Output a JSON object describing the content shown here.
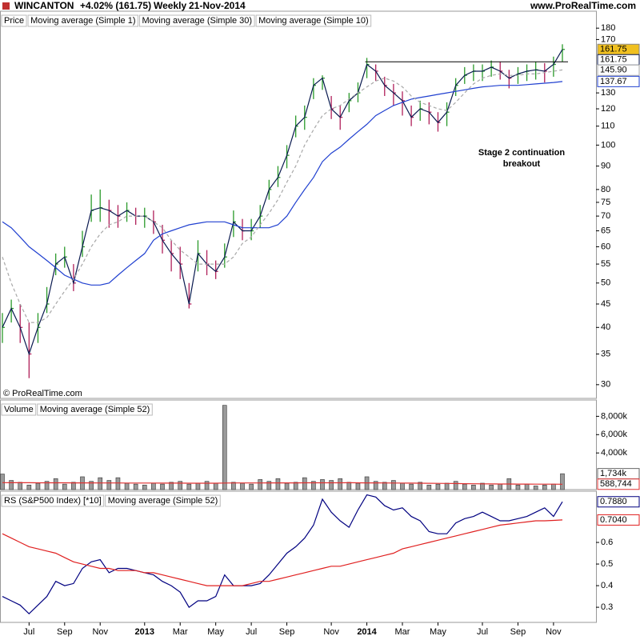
{
  "header": {
    "symbol": "WINCANTON",
    "change": "+4.02% (161.75)",
    "period": "Weekly",
    "date": "21-Nov-2014",
    "site": "www.ProRealTime.com"
  },
  "chart_data": [
    {
      "type": "ohlc",
      "credit": "© ProRealTime.com",
      "log": true,
      "ylim": [
        28,
        196
      ],
      "yticks": [
        30,
        35,
        40,
        45,
        50,
        55,
        60,
        65,
        70,
        75,
        80,
        90,
        100,
        110,
        120,
        130,
        170,
        180
      ],
      "hline": 152,
      "annotations": [
        {
          "text": [
            "Stage 2 continuation",
            "breakout"
          ]
        }
      ],
      "up_color": "#2a9a2a",
      "down_color": "#b0205a",
      "series": [
        {
          "name": "Price",
          "color": "#000000",
          "label_fill": "#f0c020",
          "values": [
            40,
            44,
            40,
            35,
            40,
            45,
            55,
            57,
            50,
            60,
            72,
            73,
            72,
            70,
            72,
            70,
            70,
            68,
            62,
            58,
            55,
            45,
            58,
            55,
            53,
            57,
            68,
            65,
            65,
            70,
            80,
            85,
            95,
            110,
            115,
            135,
            140,
            120,
            115,
            125,
            130,
            150,
            145,
            135,
            130,
            125,
            115,
            120,
            118,
            112,
            118,
            135,
            142,
            145,
            145,
            148,
            145,
            140,
            143,
            145,
            146,
            145,
            150,
            161.75
          ],
          "high": [
            43,
            46,
            45,
            41,
            43,
            49,
            58,
            60,
            55,
            65,
            78,
            80,
            76,
            74,
            75,
            73,
            73,
            72,
            67,
            62,
            60,
            50,
            62,
            59,
            56,
            61,
            72,
            69,
            69,
            74,
            84,
            90,
            100,
            116,
            122,
            140,
            142,
            128,
            122,
            130,
            137,
            155,
            150,
            141,
            136,
            131,
            122,
            125,
            124,
            118,
            124,
            140,
            148,
            150,
            150,
            153,
            152,
            146,
            148,
            150,
            152,
            151,
            156,
            166
          ],
          "low": [
            37,
            41,
            37,
            31,
            37,
            43,
            52,
            54,
            48,
            57,
            68,
            68,
            66,
            66,
            68,
            67,
            66,
            64,
            58,
            53,
            51,
            44,
            53,
            52,
            51,
            54,
            63,
            62,
            62,
            66,
            76,
            81,
            89,
            104,
            108,
            126,
            132,
            114,
            108,
            118,
            124,
            140,
            138,
            128,
            122,
            116,
            110,
            113,
            111,
            107,
            110,
            128,
            136,
            138,
            138,
            141,
            139,
            133,
            136,
            138,
            139,
            137,
            141,
            152
          ]
        },
        {
          "name": "Moving average (Simple 1)",
          "color": "#0a1a50",
          "values": [
            40,
            44,
            40,
            35,
            40,
            45,
            55,
            57,
            50,
            60,
            72,
            73,
            72,
            70,
            72,
            70,
            70,
            68,
            62,
            58,
            55,
            45,
            58,
            55,
            53,
            57,
            68,
            65,
            65,
            70,
            80,
            85,
            95,
            110,
            115,
            135,
            140,
            120,
            115,
            125,
            130,
            150,
            145,
            135,
            130,
            125,
            115,
            120,
            118,
            112,
            118,
            135,
            142,
            145,
            145,
            148,
            145,
            140,
            143,
            145,
            146,
            145,
            150,
            161.75
          ]
        },
        {
          "name": "Moving average (Simple 30)",
          "color": "#2040d0",
          "values": [
            68,
            66,
            63,
            60,
            58,
            56,
            54,
            52,
            51,
            50,
            49.5,
            49.5,
            50,
            52,
            54,
            56,
            58,
            62,
            64,
            65,
            66,
            67,
            67.5,
            68,
            68,
            68,
            67,
            66,
            66,
            66,
            66,
            67,
            70,
            75,
            80,
            85,
            92,
            96,
            99,
            103,
            107,
            111,
            116,
            119,
            122,
            124,
            126,
            127,
            128,
            129,
            130,
            131,
            132,
            133,
            134,
            134.5,
            135,
            135,
            135,
            135.5,
            136,
            136.5,
            137,
            137.67
          ]
        },
        {
          "name": "Moving average (Simple 10)",
          "color": "#a8a8a8",
          "dashed": true,
          "values": [
            57,
            50,
            45,
            41,
            41,
            42,
            45,
            48,
            51,
            55,
            60,
            64,
            67,
            68,
            70,
            70,
            70,
            68,
            66,
            62,
            59,
            57,
            55,
            55,
            55,
            55,
            57,
            61,
            63,
            67,
            71,
            76,
            83,
            90,
            100,
            108,
            116,
            120,
            122,
            126,
            130,
            134,
            138,
            140,
            138,
            134,
            128,
            124,
            122,
            120,
            119,
            124,
            130,
            136,
            140,
            142,
            143,
            142,
            142,
            143,
            143,
            144,
            145,
            145.9
          ],
          "value_labels": {
            "63": "145.90"
          }
        }
      ]
    },
    {
      "type": "bar",
      "ylim": [
        0,
        9780
      ],
      "yticks": [
        {
          "value": 4000,
          "label": "4,000k"
        },
        {
          "value": 6000,
          "label": "6,000k"
        },
        {
          "value": 8000,
          "label": "8,000k"
        }
      ],
      "series": [
        {
          "name": "Volume",
          "color": "#9a9a9a",
          "values": [
            1700,
            1000,
            800,
            500,
            700,
            900,
            1200,
            600,
            800,
            1400,
            900,
            1300,
            1000,
            1300,
            700,
            600,
            500,
            700,
            600,
            800,
            900,
            600,
            700,
            900,
            700,
            9200,
            800,
            700,
            600,
            1100,
            900,
            1200,
            700,
            800,
            1300,
            900,
            1100,
            1000,
            1200,
            800,
            700,
            1400,
            900,
            800,
            1000,
            700,
            600,
            800,
            500,
            600,
            700,
            900,
            600,
            500,
            700,
            500,
            600,
            1200,
            500,
            600,
            400,
            500,
            600,
            1734
          ],
          "value_labels": {
            "63": "1,734k"
          }
        },
        {
          "name": "Moving average (Simple 52)",
          "color": "#e03030",
          "values": [
            760,
            755,
            750,
            748,
            745,
            742,
            740,
            738,
            735,
            732,
            730,
            728,
            725,
            722,
            720,
            718,
            715,
            712,
            710,
            708,
            705,
            700,
            698,
            700,
            702,
            720,
            722,
            724,
            726,
            728,
            730,
            732,
            734,
            736,
            738,
            740,
            742,
            744,
            746,
            748,
            740,
            735,
            730,
            725,
            720,
            715,
            710,
            700,
            690,
            680,
            670,
            660,
            650,
            640,
            630,
            620,
            615,
            610,
            605,
            600,
            595,
            592,
            590,
            588.744
          ],
          "value_labels": {
            "63": "588,744"
          }
        }
      ]
    },
    {
      "type": "line",
      "ylim": [
        0.23,
        0.837
      ],
      "yticks": [
        0.3,
        0.4,
        0.5,
        0.6
      ],
      "categories": [
        null,
        null,
        null,
        "Jul",
        null,
        null,
        null,
        "Sep",
        null,
        null,
        null,
        "Nov",
        null,
        null,
        null,
        null,
        "2013",
        null,
        null,
        null,
        "Mar",
        null,
        null,
        null,
        "May",
        null,
        null,
        null,
        "Jul",
        null,
        null,
        null,
        "Sep",
        null,
        null,
        null,
        null,
        "Nov",
        null,
        null,
        null,
        "2014",
        null,
        null,
        null,
        "Mar",
        null,
        null,
        null,
        "May",
        null,
        null,
        null,
        null,
        "Jul",
        null,
        null,
        null,
        "Sep",
        null,
        null,
        null,
        "Nov",
        null
      ],
      "series": [
        {
          "name": "RS (S&P500 Index) [*10]",
          "color": "#000080",
          "values": [
            0.35,
            0.33,
            0.31,
            0.27,
            0.31,
            0.35,
            0.42,
            0.4,
            0.41,
            0.48,
            0.51,
            0.52,
            0.46,
            0.48,
            0.48,
            0.47,
            0.46,
            0.45,
            0.42,
            0.4,
            0.37,
            0.3,
            0.33,
            0.33,
            0.35,
            0.45,
            0.4,
            0.4,
            0.4,
            0.41,
            0.45,
            0.5,
            0.55,
            0.58,
            0.62,
            0.68,
            0.8,
            0.74,
            0.7,
            0.67,
            0.75,
            0.82,
            0.81,
            0.77,
            0.75,
            0.76,
            0.72,
            0.7,
            0.65,
            0.64,
            0.64,
            0.69,
            0.71,
            0.72,
            0.74,
            0.72,
            0.7,
            0.7,
            0.71,
            0.72,
            0.74,
            0.76,
            0.72,
            0.788
          ],
          "value_labels": {
            "63": "0.7880"
          }
        },
        {
          "name": "Moving average (Simple 52)",
          "color": "#e02020",
          "values": [
            0.64,
            0.62,
            0.6,
            0.58,
            0.57,
            0.56,
            0.55,
            0.53,
            0.51,
            0.5,
            0.49,
            0.48,
            0.48,
            0.47,
            0.47,
            0.47,
            0.46,
            0.46,
            0.45,
            0.44,
            0.43,
            0.42,
            0.41,
            0.4,
            0.4,
            0.4,
            0.4,
            0.4,
            0.41,
            0.42,
            0.42,
            0.43,
            0.44,
            0.45,
            0.46,
            0.47,
            0.48,
            0.49,
            0.49,
            0.5,
            0.51,
            0.52,
            0.53,
            0.54,
            0.55,
            0.57,
            0.58,
            0.59,
            0.6,
            0.61,
            0.62,
            0.63,
            0.64,
            0.65,
            0.66,
            0.67,
            0.68,
            0.685,
            0.69,
            0.695,
            0.7,
            0.7,
            0.702,
            0.704
          ],
          "value_labels": {
            "63": "0.7040"
          }
        }
      ]
    }
  ]
}
